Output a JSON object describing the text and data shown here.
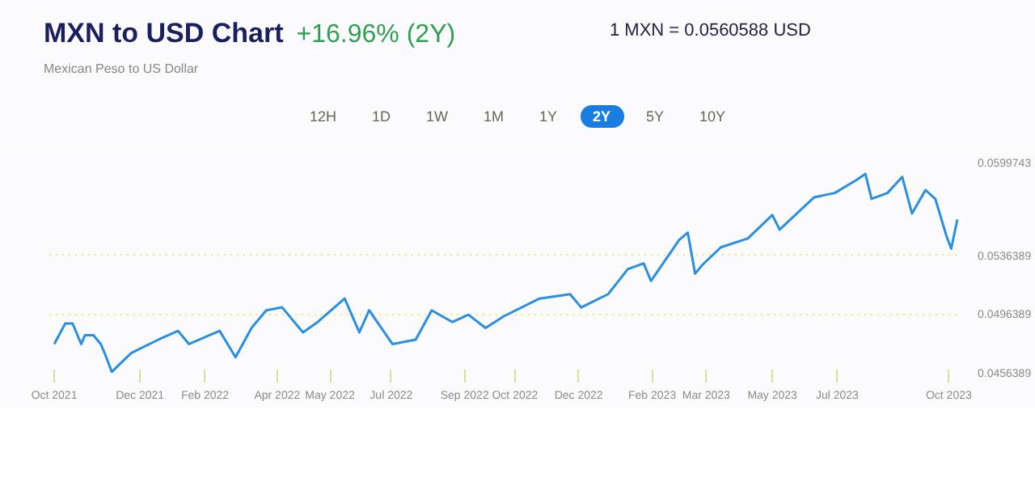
{
  "chart_data": {
    "type": "line",
    "title": "MXN to USD Chart",
    "subtitle": "Mexican Peso to US Dollar",
    "annotations": [
      "+16.96% (2Y)",
      "1 MXN = 0.0560588 USD",
      "12H",
      "1D",
      "1W",
      "1M",
      "1Y",
      "2Y",
      "5Y",
      "10Y"
    ],
    "series": [
      {
        "color": "#2a8fe0",
        "x": [
          "2021-10-01",
          "2021-10-10",
          "2021-10-16",
          "2021-10-23",
          "2021-10-26",
          "2021-11-02",
          "2021-11-08",
          "2021-11-12",
          "2021-11-17",
          "2021-11-23",
          "2021-12-03",
          "2021-12-25",
          "2022-01-10",
          "2022-01-19",
          "2022-02-13",
          "2022-02-26",
          "2022-03-11",
          "2022-03-23",
          "2022-04-05",
          "2022-04-22",
          "2022-05-04",
          "2022-05-26",
          "2022-06-07",
          "2022-06-15",
          "2022-07-04",
          "2022-07-23",
          "2022-08-05",
          "2022-08-22",
          "2022-09-04",
          "2022-09-18",
          "2022-10-03",
          "2022-11-01",
          "2022-11-26",
          "2022-12-05",
          "2022-12-27",
          "2023-01-12",
          "2023-01-25",
          "2023-01-31",
          "2023-02-23",
          "2023-03-02",
          "2023-03-08",
          "2023-03-14",
          "2023-03-29",
          "2023-04-20",
          "2023-05-10",
          "2023-05-16",
          "2023-06-13",
          "2023-06-30",
          "2023-07-18",
          "2023-07-25",
          "2023-07-30",
          "2023-08-12",
          "2023-08-24",
          "2023-09-01",
          "2023-09-12",
          "2023-09-20",
          "2023-09-29",
          "2023-10-03",
          "2023-10-08"
        ],
        "values": [
          0.0476,
          0.049,
          0.049,
          0.0476,
          0.0482,
          0.0482,
          0.0476,
          0.0468,
          0.0457,
          0.0462,
          0.047,
          0.0479,
          0.0485,
          0.0476,
          0.0485,
          0.0467,
          0.0487,
          0.0499,
          0.0501,
          0.0484,
          0.0491,
          0.0507,
          0.0484,
          0.0499,
          0.0476,
          0.0479,
          0.0499,
          0.0491,
          0.0496,
          0.0487,
          0.0495,
          0.0507,
          0.051,
          0.0501,
          0.051,
          0.0527,
          0.0531,
          0.0519,
          0.0547,
          0.0552,
          0.0524,
          0.053,
          0.0542,
          0.0548,
          0.0564,
          0.0554,
          0.0576,
          0.0579,
          0.0588,
          0.0592,
          0.0575,
          0.0579,
          0.059,
          0.0565,
          0.0581,
          0.0575,
          0.055,
          0.0541,
          0.0561
        ]
      }
    ],
    "xlim": [
      "2021-09-27",
      "2023-10-10"
    ],
    "xticks": [
      {
        "value": "2021-10-01",
        "label": "Oct 2021"
      },
      {
        "value": "2021-12-10",
        "label": "Dec 2021"
      },
      {
        "value": "2022-02-01",
        "label": "Feb 2022"
      },
      {
        "value": "2022-04-01",
        "label": "Apr 2022"
      },
      {
        "value": "2022-05-14",
        "label": "May 2022"
      },
      {
        "value": "2022-07-03",
        "label": "Jul 2022"
      },
      {
        "value": "2022-09-01",
        "label": "Sep 2022"
      },
      {
        "value": "2022-10-12",
        "label": "Oct 2022"
      },
      {
        "value": "2022-12-03",
        "label": "Dec 2022"
      },
      {
        "value": "2023-02-01",
        "label": "Feb 2023"
      },
      {
        "value": "2023-03-17",
        "label": "Mar 2023"
      },
      {
        "value": "2023-05-10",
        "label": "May 2023"
      },
      {
        "value": "2023-07-02",
        "label": "Jul 2023"
      },
      {
        "value": "2023-10-01",
        "label": "Oct 2023"
      }
    ],
    "ylim": [
      0.0456389,
      0.0599743
    ],
    "yticks": [
      0.0456389,
      0.0496389,
      0.0536389,
      0.0599743
    ],
    "grid": "y",
    "marker": "none",
    "line_style": "solid"
  }
}
